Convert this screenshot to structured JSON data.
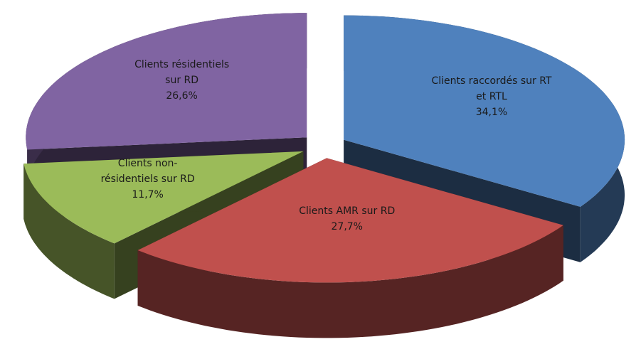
{
  "chart_data": {
    "type": "pie",
    "categories": [
      "Clients raccordés sur RT et RTL",
      "Clients AMR sur RD",
      "Clients non-résidentiels sur RD",
      "Clients résidentiels sur RD"
    ],
    "values": [
      34.1,
      27.7,
      11.7,
      26.6
    ],
    "value_labels": [
      "34,1%",
      "27,7%",
      "11,7%",
      "26,6%"
    ],
    "colors": [
      "#4f81bd",
      "#c0504d",
      "#9bbb59",
      "#8064a2"
    ]
  }
}
